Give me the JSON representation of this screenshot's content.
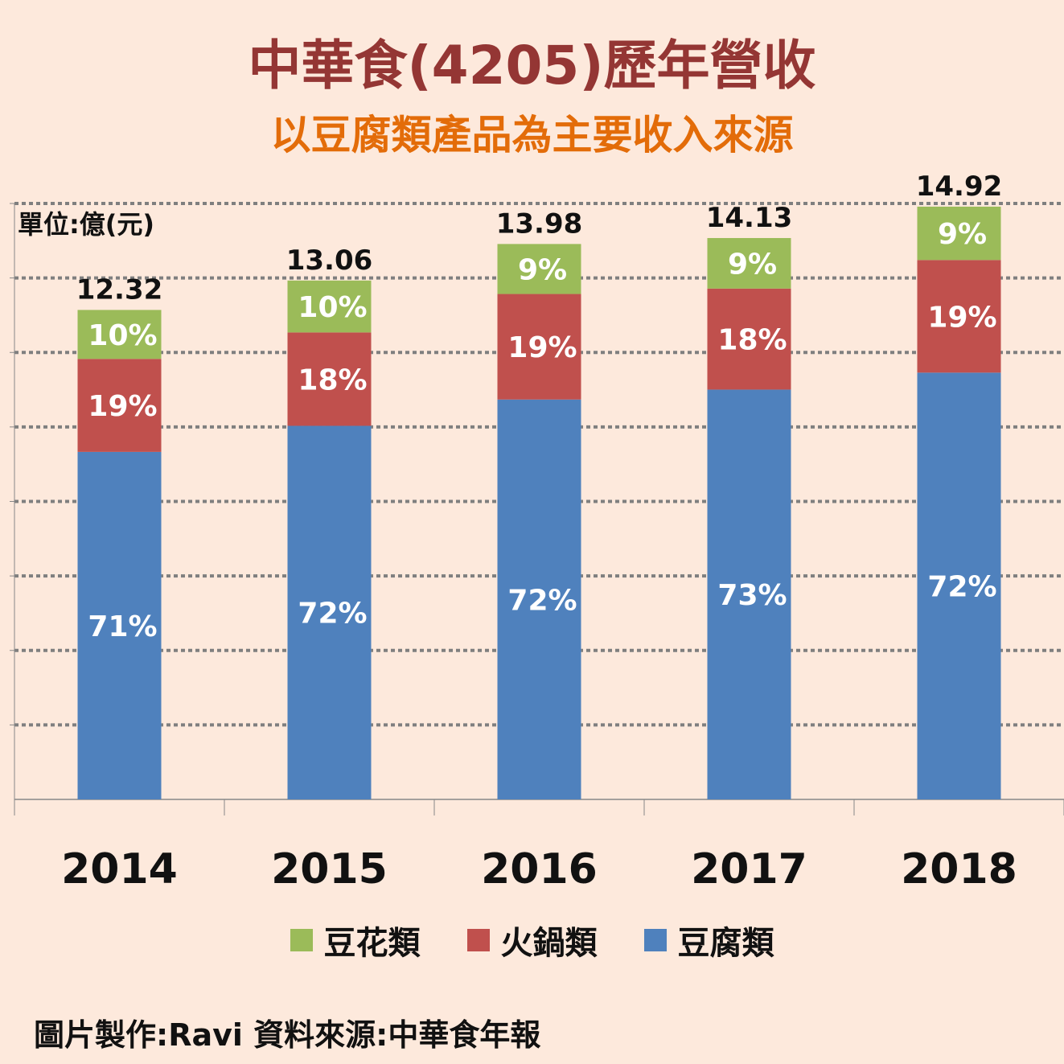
{
  "title": "中華食(4205)歷年營收",
  "subtitle": "以豆腐類產品為主要收入來源",
  "footer": "圖片製作:Ravi  資料來源:中華食年報",
  "chart_data": {
    "type": "bar",
    "stacked": true,
    "title": "中華食(4205)歷年營收",
    "subtitle": "以豆腐類產品為主要收入來源",
    "unit_label": "單位:億(元)",
    "xlabel": "",
    "ylabel": "",
    "ylim": [
      0,
      15
    ],
    "grid": true,
    "legend_position": "bottom",
    "categories": [
      "2014",
      "2015",
      "2016",
      "2017",
      "2018"
    ],
    "totals": [
      12.32,
      13.06,
      13.98,
      14.13,
      14.92
    ],
    "totals_labels": [
      "12.32",
      "13.06",
      "13.98",
      "14.13",
      "14.92"
    ],
    "series": [
      {
        "name": "豆腐類",
        "color": "#4f81bd",
        "share_percent": [
          71,
          72,
          72,
          73,
          72
        ],
        "labels": [
          "71%",
          "72%",
          "72%",
          "73%",
          "72%"
        ]
      },
      {
        "name": "火鍋類",
        "color": "#c0504d",
        "share_percent": [
          19,
          18,
          19,
          18,
          19
        ],
        "labels": [
          "19%",
          "18%",
          "19%",
          "18%",
          "19%"
        ]
      },
      {
        "name": "豆花類",
        "color": "#9bbb59",
        "share_percent": [
          10,
          10,
          9,
          9,
          9
        ],
        "labels": [
          "10%",
          "10%",
          "9%",
          "9%",
          "9%"
        ]
      }
    ],
    "legend_order": [
      "豆花類",
      "火鍋類",
      "豆腐類"
    ]
  }
}
